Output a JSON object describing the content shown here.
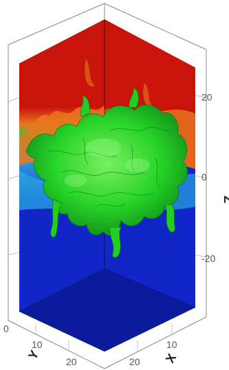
{
  "figure": {
    "colors": {
      "upper_fluid": "#c8140a",
      "lower_fluid": "#1226c8",
      "interface": "#1ed21e",
      "mixing_orange": "#e8781e",
      "mixing_cyan": "#28a8e0",
      "bounding_box": "#888888",
      "background": "#ffffff"
    },
    "axes": {
      "z": {
        "label": "Z",
        "ticks": [
          "20",
          "0",
          "-20"
        ]
      },
      "y": {
        "label": "Y",
        "ticks": [
          "0",
          "10",
          "20"
        ]
      },
      "x": {
        "label": "X",
        "ticks": [
          "10",
          "20"
        ]
      }
    }
  }
}
